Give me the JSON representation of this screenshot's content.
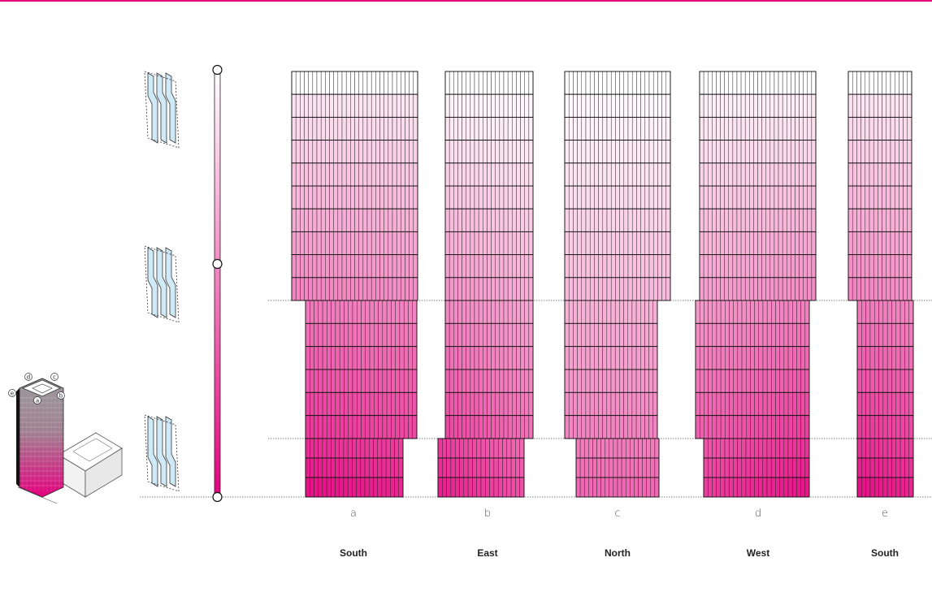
{
  "colors": {
    "accent": "#e5007e",
    "top_rule": "#e5007e",
    "panel_glass": "#cfe9f7"
  },
  "facades": [
    {
      "letter": "a",
      "orientation": "South",
      "upper_rows": 10,
      "mid_rows": 6,
      "low_rows": 3,
      "tint_base": 0.18,
      "tint_gain": 0.78
    },
    {
      "letter": "b",
      "orientation": "East",
      "upper_rows": 10,
      "mid_rows": 6,
      "low_rows": 3,
      "tint_base": 0.0,
      "tint_gain": 0.82
    },
    {
      "letter": "c",
      "orientation": "North",
      "upper_rows": 10,
      "mid_rows": 6,
      "low_rows": 3,
      "tint_base": 0.0,
      "tint_gain": 0.72
    },
    {
      "letter": "d",
      "orientation": "West",
      "upper_rows": 10,
      "mid_rows": 6,
      "low_rows": 3,
      "tint_base": 0.08,
      "tint_gain": 0.8
    },
    {
      "letter": "e",
      "orientation": "South",
      "upper_rows": 10,
      "mid_rows": 6,
      "low_rows": 3,
      "tint_base": 0.18,
      "tint_gain": 0.78
    }
  ],
  "scale": {
    "markers": 3
  },
  "panel_icons": 3,
  "axon_labels": [
    "a",
    "b",
    "c",
    "d",
    "e"
  ],
  "icons": {
    "panel": "folded-glass-panel-icon",
    "model": "tower-axonometric-icon",
    "scale": "gradient-scale-icon"
  }
}
